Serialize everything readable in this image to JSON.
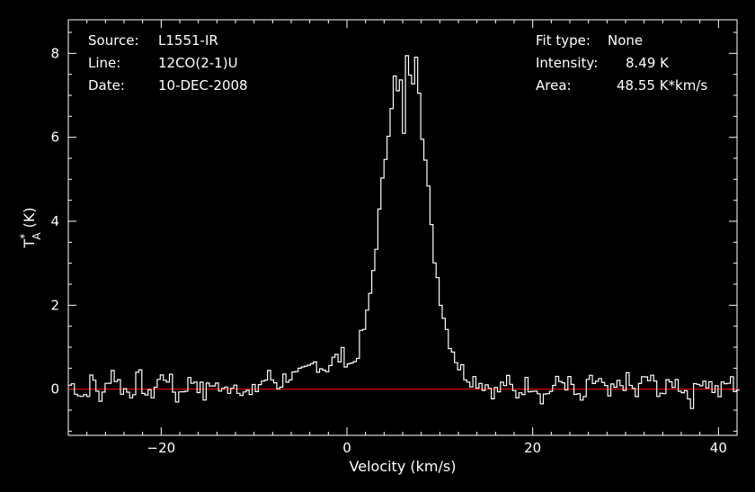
{
  "header": {
    "source_label": "Source:",
    "source_value": "L1551-IR",
    "line_label": "Line:",
    "line_value": "12CO(2-1)U",
    "date_label": "Date:",
    "date_value": "10-DEC-2008",
    "fit_label": "Fit type:",
    "fit_value": "None",
    "intensity_label": "Intensity:",
    "intensity_value": "8.49 K",
    "area_label": "Area:",
    "area_value": "48.55 K*km/s"
  },
  "colors": {
    "background": "#000000",
    "axes": "#ffffff",
    "spectrum": "#ffffff",
    "baseline": "#ff0000"
  },
  "chart_data": {
    "type": "line",
    "step": true,
    "title": "",
    "xlabel": "Velocity (km/s)",
    "ylabel": "T*A (K)",
    "xlim": [
      -30,
      42
    ],
    "ylim": [
      -1.1,
      8.8
    ],
    "xticks": [
      -20,
      0,
      20,
      40
    ],
    "xtick_labels": [
      "−20",
      "0",
      "20",
      "40"
    ],
    "yticks": [
      0,
      2,
      4,
      6,
      8
    ],
    "ytick_labels": [
      "0",
      "2",
      "4",
      "6",
      "8"
    ],
    "baseline": 0,
    "series": [
      {
        "x": [
          -29.5,
          -28.5,
          -27.5,
          -26.5,
          -25.5,
          -24.5,
          -23.5,
          -22.5,
          -21.5,
          -20.5,
          -19.5,
          -18.5,
          -17.5,
          -16.5,
          -15.5,
          -14.5,
          -13.5,
          -12.5,
          -11.5,
          -10.5,
          -9.5,
          -8.5,
          -7.5,
          -6.5,
          -5.5,
          -4.5,
          -3.5,
          -2.5,
          -1.5,
          -0.5,
          0.5,
          1.0,
          1.5,
          2.0,
          2.5,
          3.0,
          3.5,
          4.0,
          4.5,
          5.0,
          5.3,
          5.6,
          5.9,
          6.2,
          6.5,
          6.8,
          7.1,
          7.4,
          7.7,
          8.0,
          8.5,
          9.0,
          9.5,
          10.0,
          10.5,
          11.0,
          11.5,
          12.0,
          13.0,
          14.0,
          15.0,
          16.0,
          17.0,
          18.0,
          19.0,
          20.0,
          21.0,
          22.0,
          23.0,
          24.0,
          25.0,
          26.0,
          27.0,
          28.0,
          29.0,
          30.0,
          31.0,
          32.0,
          33.0,
          34.0,
          35.0,
          36.0,
          37.0,
          38.0,
          39.0,
          40.0,
          41.0,
          41.8
        ],
        "y": [
          0.1,
          -0.2,
          0.25,
          -0.3,
          0.5,
          0.05,
          -0.1,
          0.3,
          -0.25,
          0.2,
          0.35,
          -0.2,
          0.1,
          0.25,
          -0.15,
          0.2,
          -0.1,
          0.15,
          0.05,
          -0.2,
          0.15,
          0.3,
          0.1,
          0.35,
          0.25,
          0.4,
          0.65,
          0.5,
          0.7,
          0.8,
          0.55,
          0.9,
          1.3,
          1.7,
          2.5,
          3.5,
          4.5,
          5.6,
          6.6,
          7.4,
          7.0,
          7.6,
          5.3,
          8.0,
          8.2,
          6.2,
          8.49,
          7.9,
          7.0,
          6.0,
          5.0,
          3.6,
          2.8,
          2.1,
          1.5,
          1.1,
          0.8,
          0.5,
          0.3,
          0.2,
          0.1,
          -0.1,
          0.2,
          -0.15,
          0.1,
          0.15,
          -0.2,
          0.05,
          0.2,
          0.1,
          -0.4,
          0.15,
          0.2,
          -0.2,
          0.05,
          0.2,
          -0.15,
          0.3,
          0.1,
          -0.1,
          0.2,
          0.05,
          -0.25,
          0.3,
          0.1,
          -0.1,
          0.2,
          0.05
        ]
      }
    ]
  }
}
